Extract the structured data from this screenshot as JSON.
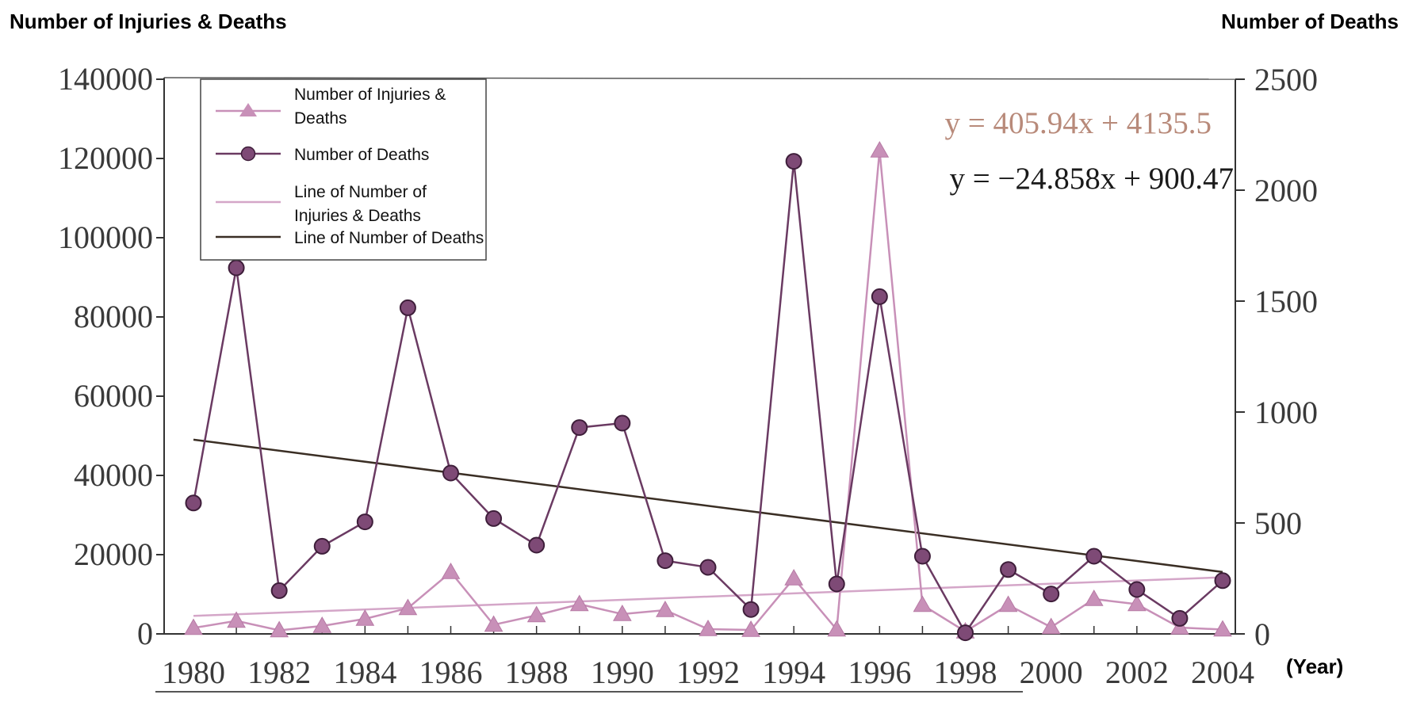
{
  "header": {
    "left_title": "Number of Injuries & Deaths",
    "right_title": "Number of Deaths",
    "x_unit": "(Year)"
  },
  "colors": {
    "injuries": "#c890b8",
    "deaths": "#6a3a62",
    "deaths_marker": "#7e4a76",
    "injuries_trend": "#d4a6c8",
    "deaths_trend": "#3a2e24",
    "axis": "#333333",
    "eq_injuries": "#b88a7a",
    "eq_deaths": "#1a1a1a"
  },
  "chart_data": {
    "type": "line",
    "x": [
      1980,
      1981,
      1982,
      1983,
      1984,
      1985,
      1986,
      1987,
      1988,
      1989,
      1990,
      1991,
      1992,
      1993,
      1994,
      1995,
      1996,
      1997,
      1998,
      1999,
      2000,
      2001,
      2002,
      2003,
      2004
    ],
    "xlim": [
      1980,
      2004
    ],
    "x_ticks": [
      "1980",
      "1982",
      "1984",
      "1986",
      "1988",
      "1990",
      "1992",
      "1994",
      "1996",
      "1998",
      "2000",
      "2002",
      "2004"
    ],
    "left_axis": {
      "ylim": [
        0,
        140000
      ],
      "ticks": [
        "0",
        "20000",
        "40000",
        "60000",
        "80000",
        "100000",
        "120000",
        "140000"
      ]
    },
    "right_axis": {
      "ylim": [
        0,
        2500
      ],
      "ticks": [
        "0",
        "500",
        "1000",
        "1500",
        "2000",
        "2500"
      ]
    },
    "series": [
      {
        "name": "Number of Injuries & Deaths",
        "axis": "left",
        "marker": "triangle",
        "values": [
          1500,
          3300,
          900,
          2000,
          3800,
          6500,
          15600,
          2300,
          4700,
          7500,
          5000,
          6000,
          1200,
          1000,
          14000,
          1100,
          122000,
          7300,
          600,
          7300,
          1700,
          8800,
          7500,
          1600,
          1100
        ]
      },
      {
        "name": "Number of Deaths",
        "axis": "right",
        "marker": "circle",
        "values": [
          590,
          1650,
          195,
          395,
          505,
          1470,
          725,
          520,
          400,
          930,
          950,
          330,
          300,
          110,
          2130,
          225,
          1520,
          350,
          5,
          290,
          180,
          350,
          200,
          70,
          240
        ]
      }
    ],
    "trendlines": [
      {
        "name": "Line of Number of Injuries & Deaths",
        "axis": "left",
        "equation": "y = 405.94x + 4135.5",
        "slope": 405.94,
        "intercept": 4135.5
      },
      {
        "name": "Line of Number of Deaths",
        "axis": "right",
        "equation": "y = −24.858x + 900.47",
        "slope": -24.858,
        "intercept": 900.47
      }
    ],
    "legend": {
      "placement": "top-left",
      "entries": [
        {
          "lines": [
            "Number of Injuries &",
            "Deaths"
          ],
          "kind": "triangle"
        },
        {
          "lines": [
            "Number of Deaths"
          ],
          "kind": "circle"
        },
        {
          "lines": [
            "Line of Number of",
            "Injuries & Deaths"
          ],
          "kind": "injuries_trend"
        },
        {
          "lines": [
            "Line of Number of Deaths"
          ],
          "kind": "deaths_trend"
        }
      ]
    }
  }
}
